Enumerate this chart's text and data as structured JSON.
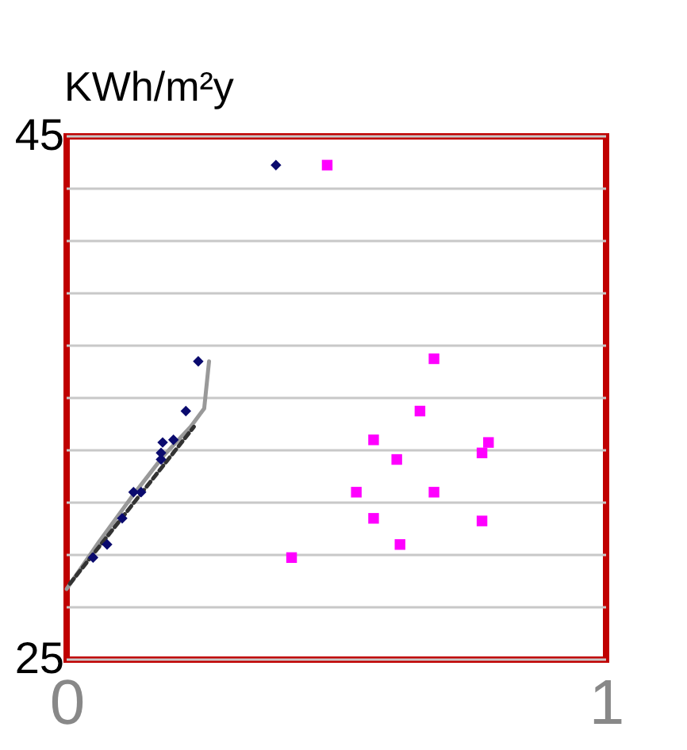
{
  "chart_data": {
    "type": "scatter",
    "ylabel": "KWh/m²y",
    "xlim": [
      0,
      1
    ],
    "xticks": [
      0,
      1
    ],
    "ylim": [
      25,
      45
    ],
    "yticks": [
      25,
      {
        "value": 27,
        "label": null
      },
      {
        "value": 29,
        "label": null
      },
      {
        "value": 31,
        "label": null
      },
      {
        "value": 33,
        "label": null
      },
      {
        "value": 35,
        "label": null
      },
      {
        "value": 37,
        "label": null
      },
      {
        "value": 39,
        "label": null
      },
      {
        "value": 41,
        "label": null
      },
      {
        "value": 43,
        "label": null
      },
      45
    ],
    "grid": "y",
    "series": [
      {
        "color": "#0a0a6e",
        "marker": "diamond",
        "x": [
          0.049,
          0.075,
          0.103,
          0.124,
          0.138,
          0.175,
          0.175,
          0.178,
          0.198,
          0.221,
          0.244,
          0.388
        ],
        "values": [
          28.9,
          29.4,
          30.4,
          31.4,
          31.4,
          32.65,
          32.9,
          33.3,
          33.4,
          34.5,
          36.4,
          43.9
        ]
      },
      {
        "color": "#ff00ff",
        "marker": "square",
        "x": [
          0.417,
          0.483,
          0.537,
          0.569,
          0.569,
          0.612,
          0.618,
          0.655,
          0.681,
          0.681,
          0.77,
          0.77,
          0.782
        ],
        "values": [
          28.9,
          43.9,
          31.4,
          33.4,
          30.4,
          32.65,
          29.4,
          34.5,
          31.4,
          36.5,
          32.9,
          30.3,
          33.3
        ]
      },
      {
        "type": "line",
        "color": "#999999",
        "line_style": "solid",
        "x": [
          0.0,
          0.06,
          0.12,
          0.18,
          0.23,
          0.255,
          0.264
        ],
        "values": [
          27.7,
          29.5,
          31.2,
          32.8,
          33.9,
          34.6,
          36.4
        ]
      },
      {
        "type": "line",
        "color": "#333333",
        "line_style": "dashed",
        "x": [
          0.006,
          0.236
        ],
        "values": [
          27.9,
          33.9
        ]
      }
    ]
  }
}
